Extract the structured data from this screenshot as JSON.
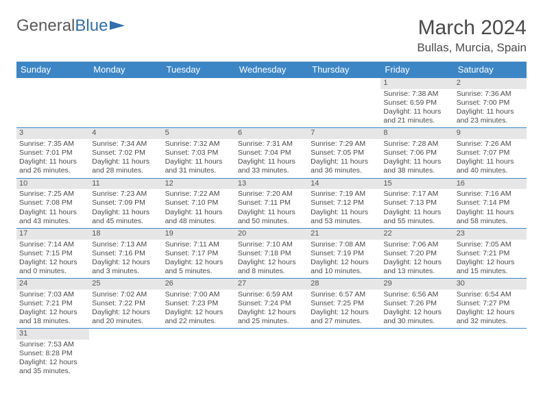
{
  "logo": {
    "text_dark": "General",
    "text_blue": "Blue"
  },
  "title": "March 2024",
  "location": "Bullas, Murcia, Spain",
  "colors": {
    "header_bg": "#3d86c6",
    "header_text": "#ffffff",
    "daynum_bg": "#e6e6e6",
    "row_border": "#3d86c6",
    "body_text": "#4a4a4a"
  },
  "weekdays": [
    "Sunday",
    "Monday",
    "Tuesday",
    "Wednesday",
    "Thursday",
    "Friday",
    "Saturday"
  ],
  "weeks": [
    [
      {
        "n": "",
        "sr": "",
        "ss": "",
        "dl": ""
      },
      {
        "n": "",
        "sr": "",
        "ss": "",
        "dl": ""
      },
      {
        "n": "",
        "sr": "",
        "ss": "",
        "dl": ""
      },
      {
        "n": "",
        "sr": "",
        "ss": "",
        "dl": ""
      },
      {
        "n": "",
        "sr": "",
        "ss": "",
        "dl": ""
      },
      {
        "n": "1",
        "sr": "Sunrise: 7:38 AM",
        "ss": "Sunset: 6:59 PM",
        "dl": "Daylight: 11 hours and 21 minutes."
      },
      {
        "n": "2",
        "sr": "Sunrise: 7:36 AM",
        "ss": "Sunset: 7:00 PM",
        "dl": "Daylight: 11 hours and 23 minutes."
      }
    ],
    [
      {
        "n": "3",
        "sr": "Sunrise: 7:35 AM",
        "ss": "Sunset: 7:01 PM",
        "dl": "Daylight: 11 hours and 26 minutes."
      },
      {
        "n": "4",
        "sr": "Sunrise: 7:34 AM",
        "ss": "Sunset: 7:02 PM",
        "dl": "Daylight: 11 hours and 28 minutes."
      },
      {
        "n": "5",
        "sr": "Sunrise: 7:32 AM",
        "ss": "Sunset: 7:03 PM",
        "dl": "Daylight: 11 hours and 31 minutes."
      },
      {
        "n": "6",
        "sr": "Sunrise: 7:31 AM",
        "ss": "Sunset: 7:04 PM",
        "dl": "Daylight: 11 hours and 33 minutes."
      },
      {
        "n": "7",
        "sr": "Sunrise: 7:29 AM",
        "ss": "Sunset: 7:05 PM",
        "dl": "Daylight: 11 hours and 36 minutes."
      },
      {
        "n": "8",
        "sr": "Sunrise: 7:28 AM",
        "ss": "Sunset: 7:06 PM",
        "dl": "Daylight: 11 hours and 38 minutes."
      },
      {
        "n": "9",
        "sr": "Sunrise: 7:26 AM",
        "ss": "Sunset: 7:07 PM",
        "dl": "Daylight: 11 hours and 40 minutes."
      }
    ],
    [
      {
        "n": "10",
        "sr": "Sunrise: 7:25 AM",
        "ss": "Sunset: 7:08 PM",
        "dl": "Daylight: 11 hours and 43 minutes."
      },
      {
        "n": "11",
        "sr": "Sunrise: 7:23 AM",
        "ss": "Sunset: 7:09 PM",
        "dl": "Daylight: 11 hours and 45 minutes."
      },
      {
        "n": "12",
        "sr": "Sunrise: 7:22 AM",
        "ss": "Sunset: 7:10 PM",
        "dl": "Daylight: 11 hours and 48 minutes."
      },
      {
        "n": "13",
        "sr": "Sunrise: 7:20 AM",
        "ss": "Sunset: 7:11 PM",
        "dl": "Daylight: 11 hours and 50 minutes."
      },
      {
        "n": "14",
        "sr": "Sunrise: 7:19 AM",
        "ss": "Sunset: 7:12 PM",
        "dl": "Daylight: 11 hours and 53 minutes."
      },
      {
        "n": "15",
        "sr": "Sunrise: 7:17 AM",
        "ss": "Sunset: 7:13 PM",
        "dl": "Daylight: 11 hours and 55 minutes."
      },
      {
        "n": "16",
        "sr": "Sunrise: 7:16 AM",
        "ss": "Sunset: 7:14 PM",
        "dl": "Daylight: 11 hours and 58 minutes."
      }
    ],
    [
      {
        "n": "17",
        "sr": "Sunrise: 7:14 AM",
        "ss": "Sunset: 7:15 PM",
        "dl": "Daylight: 12 hours and 0 minutes."
      },
      {
        "n": "18",
        "sr": "Sunrise: 7:13 AM",
        "ss": "Sunset: 7:16 PM",
        "dl": "Daylight: 12 hours and 3 minutes."
      },
      {
        "n": "19",
        "sr": "Sunrise: 7:11 AM",
        "ss": "Sunset: 7:17 PM",
        "dl": "Daylight: 12 hours and 5 minutes."
      },
      {
        "n": "20",
        "sr": "Sunrise: 7:10 AM",
        "ss": "Sunset: 7:18 PM",
        "dl": "Daylight: 12 hours and 8 minutes."
      },
      {
        "n": "21",
        "sr": "Sunrise: 7:08 AM",
        "ss": "Sunset: 7:19 PM",
        "dl": "Daylight: 12 hours and 10 minutes."
      },
      {
        "n": "22",
        "sr": "Sunrise: 7:06 AM",
        "ss": "Sunset: 7:20 PM",
        "dl": "Daylight: 12 hours and 13 minutes."
      },
      {
        "n": "23",
        "sr": "Sunrise: 7:05 AM",
        "ss": "Sunset: 7:21 PM",
        "dl": "Daylight: 12 hours and 15 minutes."
      }
    ],
    [
      {
        "n": "24",
        "sr": "Sunrise: 7:03 AM",
        "ss": "Sunset: 7:21 PM",
        "dl": "Daylight: 12 hours and 18 minutes."
      },
      {
        "n": "25",
        "sr": "Sunrise: 7:02 AM",
        "ss": "Sunset: 7:22 PM",
        "dl": "Daylight: 12 hours and 20 minutes."
      },
      {
        "n": "26",
        "sr": "Sunrise: 7:00 AM",
        "ss": "Sunset: 7:23 PM",
        "dl": "Daylight: 12 hours and 22 minutes."
      },
      {
        "n": "27",
        "sr": "Sunrise: 6:59 AM",
        "ss": "Sunset: 7:24 PM",
        "dl": "Daylight: 12 hours and 25 minutes."
      },
      {
        "n": "28",
        "sr": "Sunrise: 6:57 AM",
        "ss": "Sunset: 7:25 PM",
        "dl": "Daylight: 12 hours and 27 minutes."
      },
      {
        "n": "29",
        "sr": "Sunrise: 6:56 AM",
        "ss": "Sunset: 7:26 PM",
        "dl": "Daylight: 12 hours and 30 minutes."
      },
      {
        "n": "30",
        "sr": "Sunrise: 6:54 AM",
        "ss": "Sunset: 7:27 PM",
        "dl": "Daylight: 12 hours and 32 minutes."
      }
    ],
    [
      {
        "n": "31",
        "sr": "Sunrise: 7:53 AM",
        "ss": "Sunset: 8:28 PM",
        "dl": "Daylight: 12 hours and 35 minutes."
      },
      {
        "n": "",
        "sr": "",
        "ss": "",
        "dl": ""
      },
      {
        "n": "",
        "sr": "",
        "ss": "",
        "dl": ""
      },
      {
        "n": "",
        "sr": "",
        "ss": "",
        "dl": ""
      },
      {
        "n": "",
        "sr": "",
        "ss": "",
        "dl": ""
      },
      {
        "n": "",
        "sr": "",
        "ss": "",
        "dl": ""
      },
      {
        "n": "",
        "sr": "",
        "ss": "",
        "dl": ""
      }
    ]
  ]
}
